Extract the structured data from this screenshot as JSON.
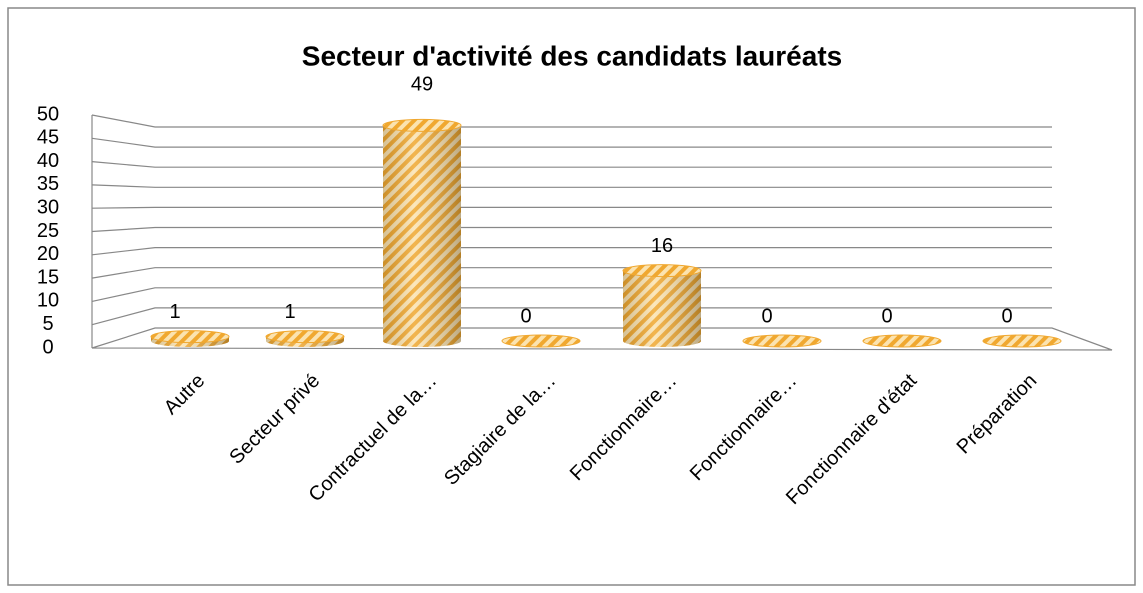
{
  "chart_data": {
    "type": "bar",
    "title": "Secteur d'activité des candidats lauréats",
    "categories": [
      "Autre",
      "Secteur privé",
      "Contractuel de la…",
      "Stagiaire de la…",
      "Fonctionnaire…",
      "Fonctionnaire…",
      "Fonctionnaire d'état",
      "Préparation"
    ],
    "values": [
      1,
      1,
      49,
      0,
      16,
      0,
      0,
      0
    ],
    "color": "#f0a830",
    "ylim": [
      0,
      50
    ],
    "yticks": [
      0,
      5,
      10,
      15,
      20,
      25,
      30,
      35,
      40,
      45,
      50
    ],
    "grid": true
  }
}
